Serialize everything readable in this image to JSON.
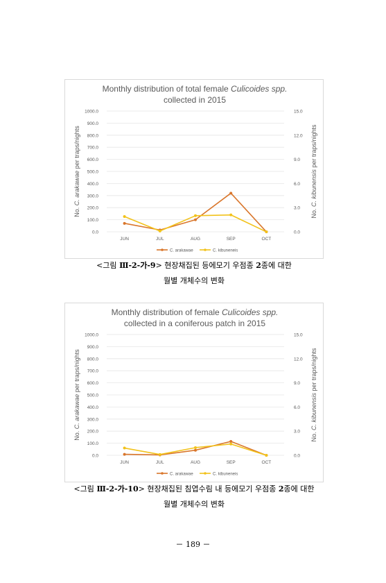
{
  "chart_data": [
    {
      "type": "line",
      "title_prefix": "Monthly distribution of total female ",
      "title_italic": "Culicoides spp.",
      "title_line2": "collected in 2015",
      "categories": [
        "JUN",
        "JUL",
        "AUG",
        "SEP",
        "OCT"
      ],
      "ylabel_left_prefix": "No. ",
      "ylabel_left_italic": "C. arakawae",
      "ylabel_left_suffix": " per traps/nights",
      "ylabel_right_prefix": "No. ",
      "ylabel_right_italic": "C. kibunensis",
      "ylabel_right_suffix": " per traps/nights",
      "ylim_left": [
        0,
        1000
      ],
      "ylim_right": [
        0,
        15
      ],
      "yticks_left": [
        "1000.0",
        "900.0",
        "800.0",
        "700.0",
        "600.0",
        "500.0",
        "400.0",
        "300.0",
        "200.0",
        "100.0",
        "0.0"
      ],
      "yticks_right": [
        "15.0",
        "12.0",
        "9.0",
        "6.0",
        "3.0",
        "0.0"
      ],
      "legend_position": "bottom",
      "series": [
        {
          "name": "C. arakawae",
          "axis": "left",
          "color": "#d9762b",
          "values": [
            70,
            15,
            100,
            320,
            0
          ]
        },
        {
          "name": "C. kibuneneis",
          "axis": "right",
          "color": "#f2c21b",
          "values": [
            1.9,
            0.1,
            2.0,
            2.1,
            0.0
          ]
        }
      ]
    },
    {
      "type": "line",
      "title_prefix": "Monthly distribution of female ",
      "title_italic": "Culicoides spp.",
      "title_line2": "collected in a coniferous patch in 2015",
      "categories": [
        "JUN",
        "JUL",
        "AUG",
        "SEP",
        "OCT"
      ],
      "ylabel_left_prefix": "No. ",
      "ylabel_left_italic": "C. arakawae",
      "ylabel_left_suffix": " per traps/nights",
      "ylabel_right_prefix": "No. ",
      "ylabel_right_italic": "C. kibunensis",
      "ylabel_right_suffix": " per traps/nights",
      "ylim_left": [
        0,
        1000
      ],
      "ylim_right": [
        0,
        15
      ],
      "yticks_left": [
        "1000.0",
        "900.0",
        "800.0",
        "700.0",
        "600.0",
        "500.0",
        "400.0",
        "300.0",
        "200.0",
        "100.0",
        "0.0"
      ],
      "yticks_right": [
        "15.0",
        "12.0",
        "9.0",
        "6.0",
        "3.0",
        "0.0"
      ],
      "legend_position": "bottom",
      "series": [
        {
          "name": "C. arakawae",
          "axis": "left",
          "color": "#d9762b",
          "values": [
            8,
            3,
            42,
            115,
            0
          ]
        },
        {
          "name": "C. kibuneneis",
          "axis": "right",
          "color": "#f2c21b",
          "values": [
            0.9,
            0.1,
            0.95,
            1.4,
            0.0
          ]
        }
      ]
    }
  ],
  "captions": [
    {
      "prefix": "<그림 ",
      "number": "Ⅲ-2-가-9",
      "suffix": "> 현장채집된 등에모기 우점종 ",
      "count": "2",
      "text_after": "종에 대한",
      "line2": "월별 개체수의 변화"
    },
    {
      "prefix": "<그림 ",
      "number": "Ⅲ-2-가-10",
      "suffix": "> 현장채집된 침엽수림 내 등에모기 우점종 ",
      "count": "2",
      "text_after": "종에 대한",
      "line2": "월별 개체수의 변화"
    }
  ],
  "page_number": "－ 189 －"
}
